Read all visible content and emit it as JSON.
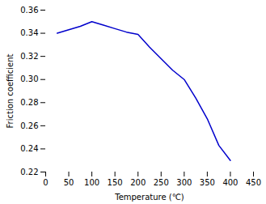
{
  "chart_data": {
    "type": "line",
    "x": [
      25,
      75,
      100,
      125,
      150,
      175,
      200,
      225,
      250,
      275,
      300,
      325,
      350,
      375,
      400
    ],
    "values": [
      0.34,
      0.346,
      0.35,
      0.347,
      0.344,
      0.341,
      0.339,
      0.328,
      0.318,
      0.308,
      0.3,
      0.284,
      0.266,
      0.243,
      0.23
    ],
    "color": "#0000cc",
    "xlabel": "Temperature (℃)",
    "ylabel": "Friction coefficient",
    "xlim": [
      0,
      450
    ],
    "ylim": [
      0.22,
      0.36
    ],
    "xticks": [
      0,
      50,
      100,
      150,
      200,
      250,
      300,
      350,
      400,
      450
    ],
    "yticks": [
      0.22,
      0.24,
      0.26,
      0.28,
      {
        "value": 0.3,
        "label": "0.30"
      },
      0.32,
      0.34,
      0.36
    ]
  }
}
